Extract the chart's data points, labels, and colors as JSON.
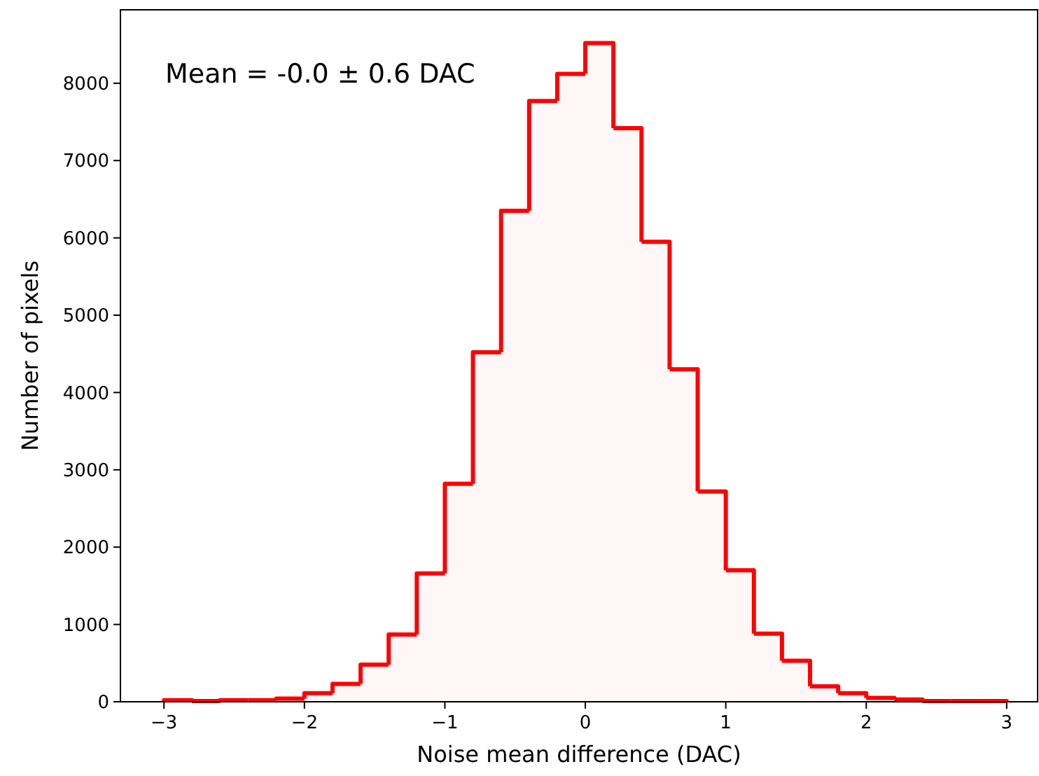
{
  "chart_data": {
    "type": "histogram",
    "xlabel": "Noise mean difference (DAC)",
    "ylabel": "Number of pixels",
    "annotations": [
      "Mean =  -0.0 ± 0.6 DAC"
    ],
    "bins": [
      -3.0,
      -2.8,
      -2.6,
      -2.4,
      -2.2,
      -2.0,
      -1.8,
      -1.6,
      -1.4,
      -1.2,
      -1.0,
      -0.8,
      -0.6,
      -0.4,
      -0.2,
      0.0,
      0.2,
      0.4,
      0.6,
      0.8,
      1.0,
      1.2,
      1.4,
      1.6,
      1.8,
      2.0,
      2.2,
      2.4,
      2.6,
      2.8,
      3.0
    ],
    "values": [
      20,
      10,
      20,
      20,
      40,
      110,
      230,
      480,
      870,
      1660,
      2820,
      4520,
      6350,
      7770,
      8120,
      8520,
      7420,
      5950,
      4300,
      2720,
      1700,
      880,
      530,
      200,
      110,
      50,
      30,
      10,
      10,
      10
    ],
    "color": "#ff0000",
    "xlim": [
      -3.31,
      3.22
    ],
    "ylim": [
      0,
      8950
    ],
    "xticks": [
      {
        "value": -3,
        "label": "−3"
      },
      {
        "value": -2,
        "label": "−2"
      },
      {
        "value": -1,
        "label": "−1"
      },
      0,
      1,
      2,
      3
    ],
    "yticks": [
      0,
      1000,
      2000,
      3000,
      4000,
      5000,
      6000,
      7000,
      8000
    ],
    "grid": false
  }
}
